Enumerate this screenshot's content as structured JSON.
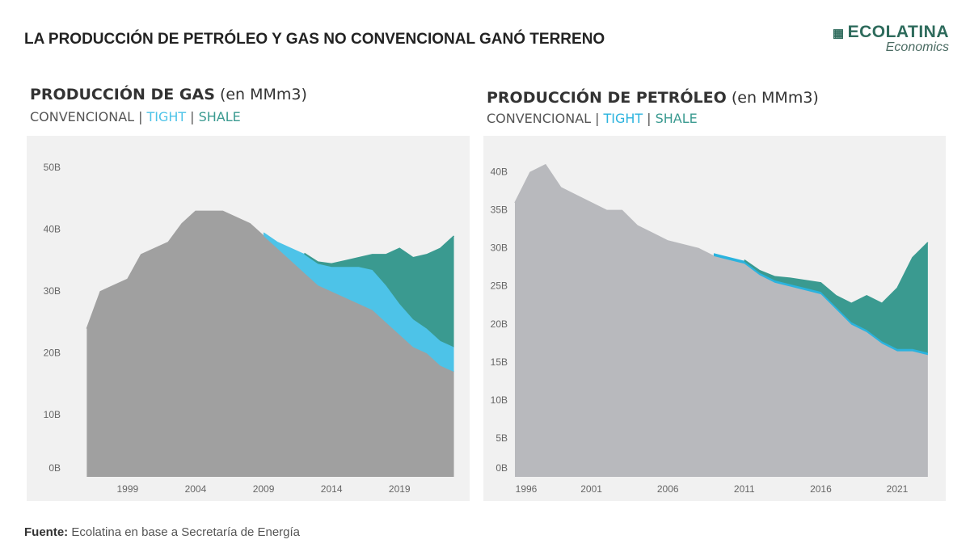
{
  "title": "LA PRODUCCIÓN DE PETRÓLEO Y GAS NO CONVENCIONAL GANÓ TERRENO",
  "logo": {
    "name": "ECOLATINA",
    "tagline": "Economics"
  },
  "footer": {
    "label": "Fuente:",
    "text": "Ecolatina en base a Secretaría de Energía"
  },
  "chart_data": [
    {
      "type": "area",
      "stacked": true,
      "title": "PRODUCCIÓN DE GAS",
      "title_unit": "(en MMm3)",
      "legend_separator": "|",
      "x": [
        1996,
        1997,
        1998,
        1999,
        2000,
        2001,
        2002,
        2003,
        2004,
        2005,
        2006,
        2007,
        2008,
        2009,
        2010,
        2011,
        2012,
        2013,
        2014,
        2015,
        2016,
        2017,
        2018,
        2019,
        2020,
        2021,
        2022,
        2023
      ],
      "series": [
        {
          "name": "CONVENCIONAL",
          "color": "#a0a0a0",
          "values": [
            24,
            30,
            31,
            32,
            36,
            37,
            38,
            41,
            43,
            43,
            43,
            42,
            41,
            39,
            37,
            35,
            33,
            31,
            30,
            29,
            28,
            27,
            25,
            23,
            21,
            20,
            18,
            17
          ]
        },
        {
          "name": "TIGHT",
          "color": "#4dc3e8",
          "values": [
            null,
            null,
            null,
            null,
            null,
            null,
            null,
            null,
            null,
            null,
            null,
            null,
            null,
            0.5,
            1,
            2,
            3,
            3.5,
            4,
            5,
            6,
            6.5,
            6,
            5,
            4.5,
            4,
            4,
            4
          ]
        },
        {
          "name": "SHALE",
          "color": "#3a9a90",
          "values": [
            null,
            null,
            null,
            null,
            null,
            null,
            null,
            null,
            null,
            null,
            null,
            null,
            null,
            null,
            null,
            null,
            0.2,
            0.3,
            0.5,
            1,
            1.5,
            2.5,
            5,
            9,
            10,
            12,
            15,
            18
          ]
        }
      ],
      "xlim": [
        1995.8,
        2023.8
      ],
      "xticks": [
        1999,
        2004,
        2009,
        2014,
        2019
      ],
      "ylim": [
        0,
        53
      ],
      "yticks": [
        {
          "value": 0,
          "label": "0B"
        },
        {
          "value": 10,
          "label": "10B"
        },
        {
          "value": 20,
          "label": "20B"
        },
        {
          "value": 30,
          "label": "30B"
        },
        {
          "value": 40,
          "label": "40B"
        },
        {
          "value": 50,
          "label": "50B"
        }
      ],
      "grid": false
    },
    {
      "type": "area",
      "stacked": true,
      "title": "PRODUCCIÓN DE PETRÓLEO",
      "title_unit": "(en MMm3)",
      "legend_separator": "|",
      "x": [
        1996,
        1997,
        1998,
        1999,
        2000,
        2001,
        2002,
        2003,
        2004,
        2005,
        2006,
        2007,
        2008,
        2009,
        2010,
        2011,
        2012,
        2013,
        2014,
        2015,
        2016,
        2017,
        2018,
        2019,
        2020,
        2021,
        2022,
        2023
      ],
      "series": [
        {
          "name": "CONVENCIONAL",
          "color": "#b8b9bd",
          "values": [
            36,
            40,
            41,
            38,
            37,
            36,
            35,
            35,
            33,
            32,
            31,
            30.5,
            30,
            29,
            28.5,
            28,
            26.5,
            25.5,
            25,
            24.5,
            24,
            22,
            20,
            19,
            17.5,
            16.5,
            16.5,
            16
          ]
        },
        {
          "name": "TIGHT",
          "color": "#2bb3de",
          "values": [
            null,
            null,
            null,
            null,
            null,
            null,
            null,
            null,
            null,
            null,
            null,
            null,
            null,
            0.3,
            0.3,
            0.3,
            0.3,
            0.3,
            0.3,
            0.3,
            0.3,
            0.3,
            0.3,
            0.3,
            0.3,
            0.3,
            0.3,
            0.3
          ]
        },
        {
          "name": "SHALE",
          "color": "#3a9a90",
          "values": [
            null,
            null,
            null,
            null,
            null,
            null,
            null,
            null,
            null,
            null,
            null,
            null,
            null,
            null,
            null,
            0.2,
            0.3,
            0.5,
            0.8,
            1,
            1.2,
            1.5,
            2.5,
            4.5,
            5,
            8,
            12,
            14.5
          ]
        }
      ],
      "xlim": [
        1996,
        2023.8
      ],
      "xticks": [
        1996,
        2001,
        2006,
        2011,
        2016,
        2021
      ],
      "ylim": [
        0,
        43
      ],
      "yticks": [
        {
          "value": 0,
          "label": "0B"
        },
        {
          "value": 5,
          "label": "5B"
        },
        {
          "value": 10,
          "label": "10B"
        },
        {
          "value": 15,
          "label": "15B"
        },
        {
          "value": 20,
          "label": "20B"
        },
        {
          "value": 25,
          "label": "25B"
        },
        {
          "value": 30,
          "label": "30B"
        },
        {
          "value": 35,
          "label": "35B"
        },
        {
          "value": 40,
          "label": "40B"
        }
      ],
      "grid": false
    }
  ]
}
